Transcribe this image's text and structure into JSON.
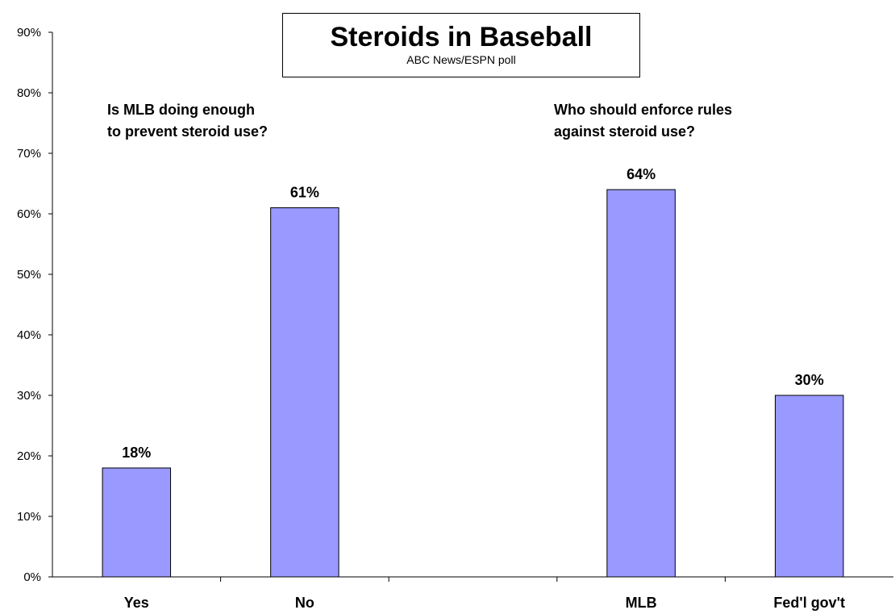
{
  "chart_data": {
    "type": "bar",
    "title": "Steroids in Baseball",
    "subtitle": "ABC News/ESPN poll",
    "categories": [
      "Yes",
      "No",
      "",
      "MLB",
      "Fed'l gov't"
    ],
    "values": [
      18,
      61,
      null,
      64,
      30
    ],
    "data_labels": [
      "18%",
      "61%",
      "",
      "64%",
      "30%"
    ],
    "y_ticks": [
      "0%",
      "10%",
      "20%",
      "30%",
      "40%",
      "50%",
      "60%",
      "70%",
      "80%",
      "90%"
    ],
    "ylim": [
      0,
      90
    ],
    "xlabel": "",
    "ylabel": "",
    "grid": false,
    "legend": "none",
    "bar_color": "#9999ff",
    "annotations": [
      {
        "lines": [
          "Is MLB doing enough",
          "to prevent steroid use?"
        ]
      },
      {
        "lines": [
          "Who should enforce rules",
          "against steroid use?"
        ]
      }
    ]
  }
}
